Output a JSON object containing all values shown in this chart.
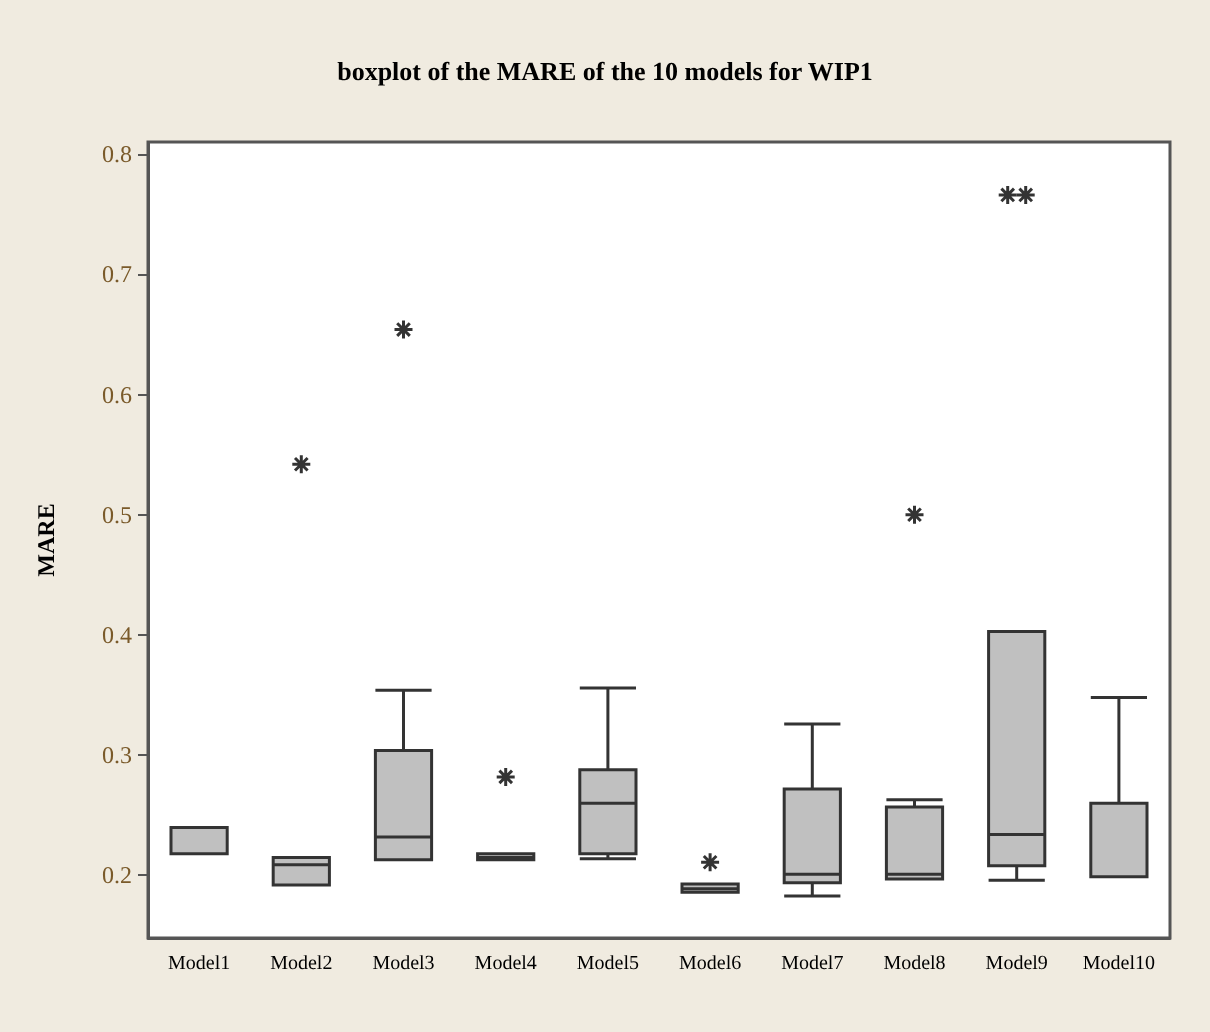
{
  "chart_data": {
    "type": "box",
    "title": "boxplot of the MARE of the 10 models for WIP1",
    "ylabel": "MARE",
    "categories": [
      "Model1",
      "Model2",
      "Model3",
      "Model4",
      "Model5",
      "Model6",
      "Model7",
      "Model8",
      "Model9",
      "Model10"
    ],
    "color": "#c0c0c0",
    "boxes": [
      {
        "low": 0.218,
        "q1": 0.218,
        "median": 0.218,
        "q3": 0.24,
        "high": 0.24
      },
      {
        "low": 0.192,
        "q1": 0.192,
        "median": 0.209,
        "q3": 0.215,
        "high": 0.215,
        "outliers": [
          0.542
        ]
      },
      {
        "low": 0.213,
        "q1": 0.213,
        "median": 0.232,
        "q3": 0.304,
        "high": 0.354,
        "outliers": [
          0.654
        ]
      },
      {
        "low": 0.213,
        "q1": 0.213,
        "median": 0.215,
        "q3": 0.218,
        "high": 0.218,
        "outliers": [
          0.282
        ]
      },
      {
        "low": 0.214,
        "q1": 0.218,
        "median": 0.26,
        "q3": 0.288,
        "high": 0.356
      },
      {
        "low": 0.186,
        "q1": 0.186,
        "median": 0.189,
        "q3": 0.193,
        "high": 0.193,
        "outliers": [
          0.211
        ]
      },
      {
        "low": 0.183,
        "q1": 0.194,
        "median": 0.201,
        "q3": 0.272,
        "high": 0.326
      },
      {
        "low": 0.197,
        "q1": 0.197,
        "median": 0.201,
        "q3": 0.257,
        "high": 0.263,
        "outliers": [
          0.5
        ]
      },
      {
        "low": 0.196,
        "q1": 0.208,
        "median": 0.234,
        "q3": 0.403,
        "high": 0.403,
        "outliers": [
          0.766,
          0.766
        ]
      },
      {
        "low": 0.199,
        "q1": 0.199,
        "median": 0.199,
        "q3": 0.26,
        "high": 0.348
      }
    ],
    "marker": "star",
    "ylim": [
      0.148,
      0.81
    ],
    "yticks": [
      0.2,
      0.3,
      0.4,
      0.5,
      0.6,
      0.7,
      0.8
    ],
    "grid": false
  }
}
